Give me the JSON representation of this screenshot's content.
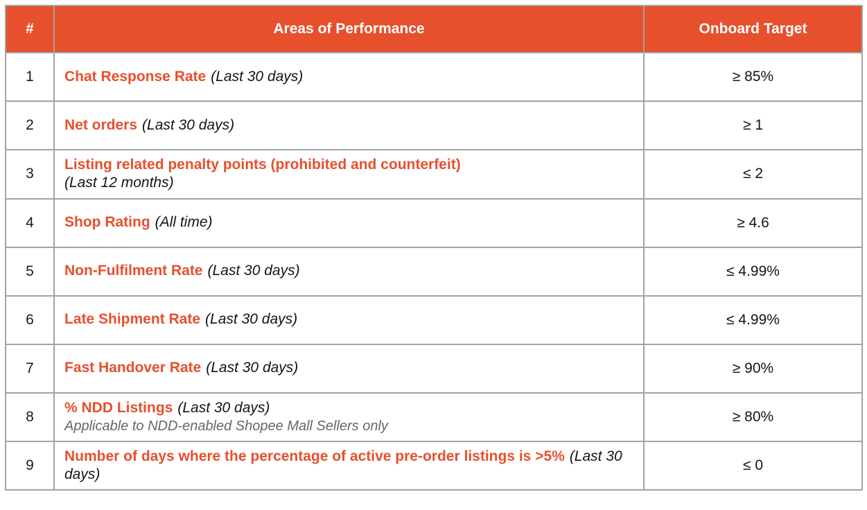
{
  "colors": {
    "header_bg": "#e6502d",
    "title_red": "#e6502d",
    "note_gray": "#666666",
    "border_gray": "#a3a3a3"
  },
  "table": {
    "headers": {
      "num": "#",
      "area": "Areas of Performance",
      "target": "Onboard Target"
    },
    "rows": [
      {
        "num": "1",
        "title": "Chat Response Rate",
        "period": "(Last 30 days)",
        "target": "≥ 85%"
      },
      {
        "num": "2",
        "title": "Net orders",
        "period": "(Last 30 days)",
        "target": "≥ 1"
      },
      {
        "num": "3",
        "title": "Listing related penalty points (prohibited and counterfeit)",
        "period": "(Last 12 months)",
        "target": "≤ 2"
      },
      {
        "num": "4",
        "title": "Shop Rating",
        "period": "(All time)",
        "target": "≥ 4.6"
      },
      {
        "num": "5",
        "title": "Non-Fulfilment Rate",
        "period": "(Last 30 days)",
        "target": "≤ 4.99%"
      },
      {
        "num": "6",
        "title": "Late Shipment Rate",
        "period": "(Last 30 days)",
        "target": "≤ 4.99%"
      },
      {
        "num": "7",
        "title": "Fast Handover Rate",
        "period": "(Last 30 days)",
        "target": "≥ 90%"
      },
      {
        "num": "8",
        "title": "% NDD Listings",
        "period": "(Last 30 days)",
        "note": "Applicable to NDD-enabled Shopee Mall Sellers only",
        "target": "≥ 80%"
      },
      {
        "num": "9",
        "title": "Number of days where the percentage of active pre-order listings is >5%",
        "period": "(Last 30 days)",
        "target": "≤ 0"
      }
    ]
  }
}
